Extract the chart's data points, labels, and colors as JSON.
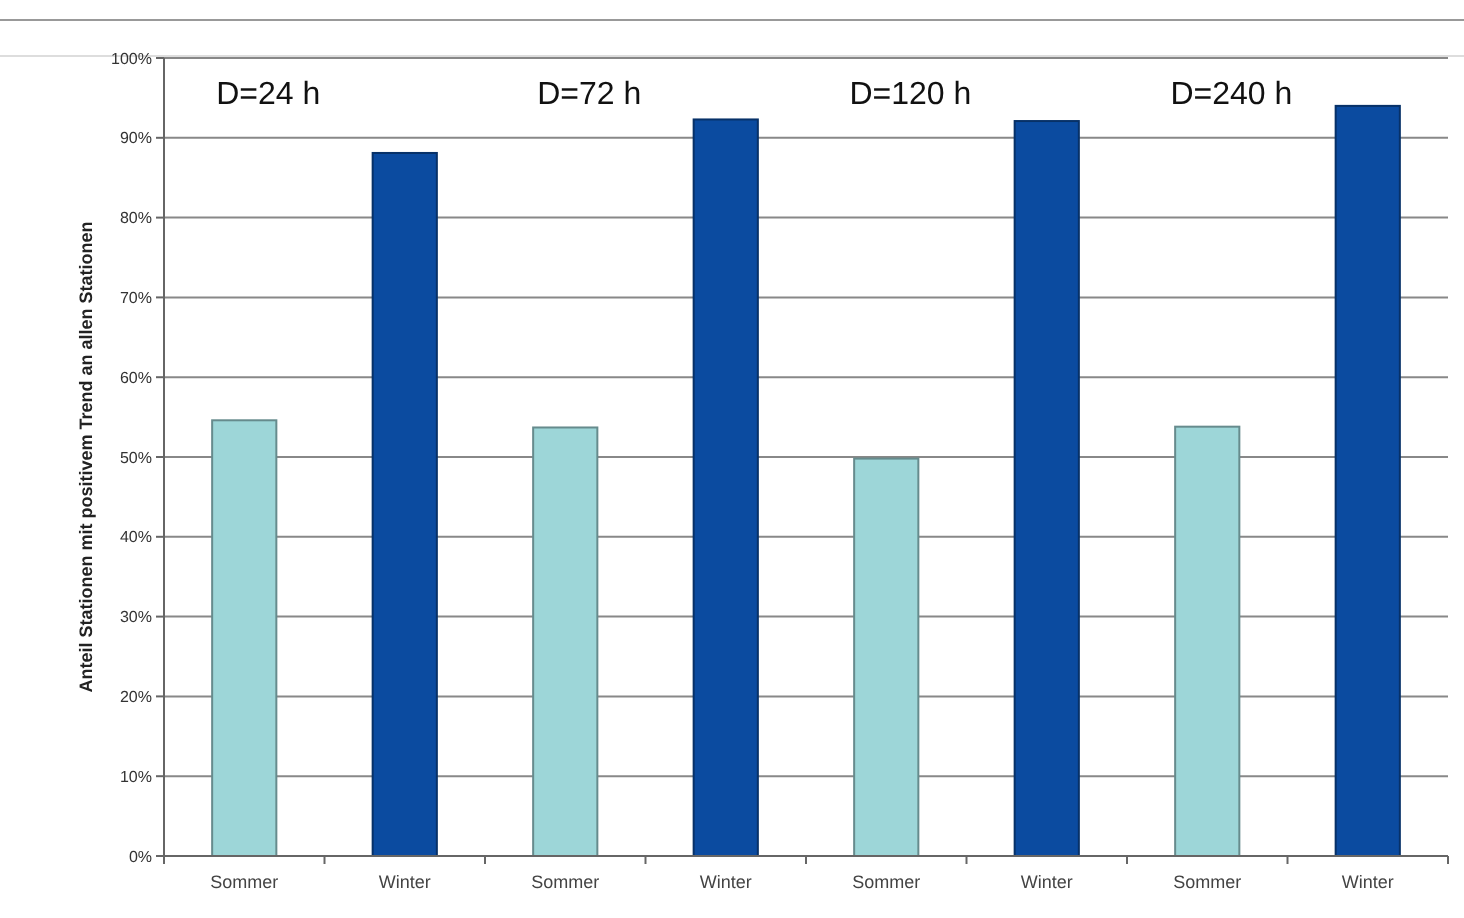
{
  "chart_data": {
    "type": "bar",
    "ylabel": "Anteil Stationen mit positivem Trend an allen Stationen",
    "categories": [
      "Sommer",
      "Winter",
      "Sommer",
      "Winter",
      "Sommer",
      "Winter",
      "Sommer",
      "Winter"
    ],
    "values": [
      54.6,
      88.1,
      53.7,
      92.3,
      49.8,
      92.1,
      53.8,
      94.0
    ],
    "colors": [
      "#9dd6d8",
      "#0b4ba0",
      "#9dd6d8",
      "#0b4ba0",
      "#9dd6d8",
      "#0b4ba0",
      "#9dd6d8",
      "#0b4ba0"
    ],
    "annotations": [
      "D=24 h",
      "D=72 h",
      "D=120 h",
      "D=240 h"
    ],
    "ylim": [
      0,
      100
    ],
    "yticks": [
      {
        "value": 0,
        "label": "0%"
      },
      {
        "value": 10,
        "label": "10%"
      },
      {
        "value": 20,
        "label": "20%"
      },
      {
        "value": 30,
        "label": "30%"
      },
      {
        "value": 40,
        "label": "40%"
      },
      {
        "value": 50,
        "label": "50%"
      },
      {
        "value": 60,
        "label": "60%"
      },
      {
        "value": 70,
        "label": "70%"
      },
      {
        "value": 80,
        "label": "80%"
      },
      {
        "value": 90,
        "label": "90%"
      },
      {
        "value": 100,
        "label": "100%"
      }
    ],
    "grid": "y"
  }
}
